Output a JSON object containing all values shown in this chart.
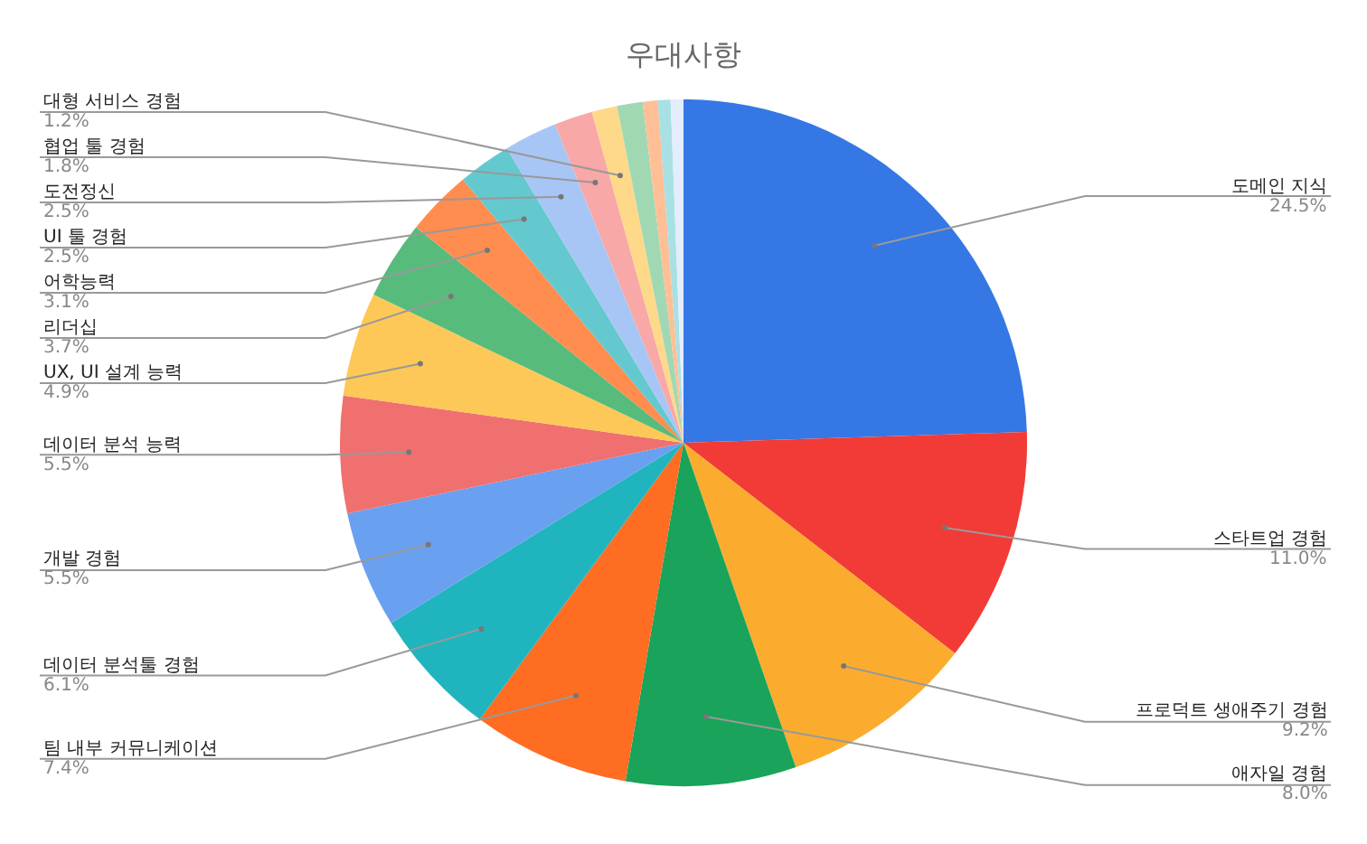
{
  "chart_data": {
    "type": "pie",
    "title": "우대사항",
    "categories": [
      "도메인 지식",
      "스타트업 경험",
      "프로덕트 생애주기 경험",
      "애자일 경험",
      "팀 내부 커뮤니케이션",
      "데이터 분석툴 경험",
      "개발 경험",
      "데이터 분석 능력",
      "UX, UI 설계 능력",
      "리더십",
      "어학능력",
      "UI 툴 경험",
      "도전정신",
      "협업 툴 경험",
      "대형 서비스 경험",
      null,
      null,
      null,
      null
    ],
    "values": [
      24.5,
      11.0,
      9.2,
      8.0,
      7.4,
      6.1,
      5.5,
      5.5,
      4.9,
      3.7,
      3.1,
      2.5,
      2.5,
      1.8,
      1.2,
      1.2,
      0.7,
      0.6,
      0.6
    ],
    "value_labels": [
      "24.5%",
      "11.0%",
      "9.2%",
      "8.0%",
      "7.4%",
      "6.1%",
      "5.5%",
      "5.5%",
      "4.9%",
      "3.7%",
      "3.1%",
      "2.5%",
      "2.5%",
      "1.8%",
      "1.2%",
      null,
      null,
      null,
      null
    ],
    "colors": [
      "#3578e5",
      "#f23b36",
      "#fbac2f",
      "#1aa35a",
      "#ff6d23",
      "#20b5be",
      "#6aa0f0",
      "#f07070",
      "#fdc857",
      "#57bb7c",
      "#ff8d4f",
      "#63c9cf",
      "#a8c6f5",
      "#f8a8a6",
      "#fed98a",
      "#a0d8b3",
      "#ffbf96",
      "#a8e0e3",
      "#e3edfb"
    ],
    "legend": false
  }
}
